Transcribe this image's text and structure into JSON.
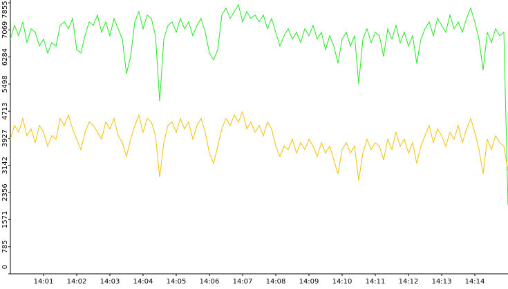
{
  "chart_data": {
    "type": "line",
    "xlim": [
      840,
      855
    ],
    "xticks": [
      {
        "value": 841,
        "label": "14:01"
      },
      {
        "value": 842,
        "label": "14:02"
      },
      {
        "value": 843,
        "label": "14:03"
      },
      {
        "value": 844,
        "label": "14:04"
      },
      {
        "value": 845,
        "label": "14:05"
      },
      {
        "value": 846,
        "label": "14:06"
      },
      {
        "value": 847,
        "label": "14:07"
      },
      {
        "value": 848,
        "label": "14:08"
      },
      {
        "value": 849,
        "label": "14:09"
      },
      {
        "value": 850,
        "label": "14:10"
      },
      {
        "value": 851,
        "label": "14:11"
      },
      {
        "value": 852,
        "label": "14:12"
      },
      {
        "value": 853,
        "label": "14:13"
      },
      {
        "value": 854,
        "label": "14:14"
      }
    ],
    "ylim": [
      0,
      7855
    ],
    "yticks": [
      0,
      785,
      1571,
      2356,
      3142,
      3927,
      4713,
      5498,
      6284,
      7069,
      7855
    ],
    "x": [
      840,
      840.125,
      840.25,
      840.375,
      840.5,
      840.625,
      840.75,
      840.875,
      841,
      841.125,
      841.25,
      841.375,
      841.5,
      841.625,
      841.75,
      841.875,
      842,
      842.125,
      842.25,
      842.375,
      842.5,
      842.625,
      842.75,
      842.875,
      843,
      843.125,
      843.25,
      843.375,
      843.5,
      843.625,
      843.75,
      843.875,
      844,
      844.125,
      844.25,
      844.375,
      844.5,
      844.625,
      844.75,
      844.875,
      845,
      845.125,
      845.25,
      845.375,
      845.5,
      845.625,
      845.75,
      845.875,
      846,
      846.125,
      846.25,
      846.375,
      846.5,
      846.625,
      846.75,
      846.875,
      847,
      847.125,
      847.25,
      847.375,
      847.5,
      847.625,
      847.75,
      847.875,
      848,
      848.125,
      848.25,
      848.375,
      848.5,
      848.625,
      848.75,
      848.875,
      849,
      849.125,
      849.25,
      849.375,
      849.5,
      849.625,
      849.75,
      849.875,
      850,
      850.125,
      850.25,
      850.375,
      850.5,
      850.625,
      850.75,
      850.875,
      851,
      851.125,
      851.25,
      851.375,
      851.5,
      851.625,
      851.75,
      851.875,
      852,
      852.125,
      852.25,
      852.375,
      852.5,
      852.625,
      852.75,
      852.875,
      853,
      853.125,
      853.25,
      853.375,
      853.5,
      853.625,
      853.75,
      853.875,
      854,
      854.125,
      854.25,
      854.375,
      854.5,
      854.625,
      854.75,
      854.875,
      855
    ],
    "series": [
      {
        "color": "#22e622",
        "values": [
          6800,
          7200,
          6900,
          7300,
          6700,
          7100,
          7000,
          6600,
          6800,
          6400,
          6700,
          6600,
          7200,
          7300,
          7100,
          7400,
          6500,
          6400,
          6900,
          7300,
          7200,
          7500,
          7000,
          7300,
          6900,
          7400,
          7100,
          6800,
          5800,
          6300,
          7300,
          7600,
          7100,
          7500,
          7400,
          6900,
          5000,
          6800,
          7200,
          7300,
          7000,
          7400,
          7100,
          7300,
          6900,
          7200,
          7400,
          7000,
          6400,
          6200,
          6500,
          7500,
          7700,
          7400,
          7600,
          7800,
          7300,
          7600,
          7400,
          7500,
          7300,
          7500,
          7100,
          7400,
          7000,
          6600,
          6900,
          7100,
          6800,
          7000,
          6700,
          7100,
          6900,
          7200,
          6800,
          7000,
          6500,
          6900,
          6600,
          6100,
          6800,
          7000,
          6600,
          6900,
          5500,
          6800,
          7100,
          6700,
          7000,
          6900,
          6300,
          7100,
          6800,
          7200,
          6700,
          7000,
          6600,
          6900,
          6100,
          6800,
          7100,
          7300,
          6900,
          7400,
          7200,
          7000,
          7500,
          7100,
          7300,
          7000,
          7400,
          7700,
          7300,
          6800,
          5900,
          7000,
          6700,
          7100,
          6900,
          7000,
          2000
        ]
      },
      {
        "color": "#f5c000",
        "values": [
          3900,
          4300,
          4100,
          4500,
          4000,
          4200,
          3800,
          4300,
          4100,
          3700,
          4000,
          3900,
          4500,
          4300,
          4600,
          4200,
          3900,
          3600,
          4100,
          4400,
          4300,
          4100,
          3900,
          4400,
          4200,
          4500,
          4000,
          3800,
          3400,
          3900,
          4300,
          4600,
          4100,
          4500,
          4400,
          4000,
          2800,
          3800,
          4300,
          4400,
          4100,
          4500,
          4200,
          4400,
          3900,
          4300,
          4500,
          4100,
          3500,
          3200,
          3700,
          4200,
          4500,
          4300,
          4600,
          4400,
          4700,
          4200,
          4400,
          4100,
          4300,
          4000,
          4400,
          4200,
          3700,
          3400,
          3700,
          3600,
          3900,
          3500,
          3800,
          3600,
          3900,
          3700,
          3400,
          3800,
          3500,
          3700,
          3300,
          2900,
          3600,
          3800,
          3500,
          3700,
          2700,
          3500,
          3900,
          3600,
          3800,
          3700,
          3300,
          3900,
          3600,
          4100,
          3700,
          3900,
          3500,
          3800,
          3200,
          3700,
          4000,
          4300,
          3800,
          4200,
          4000,
          3700,
          4100,
          3900,
          4300,
          3800,
          4200,
          4500,
          4100,
          3600,
          2900,
          3900,
          3600,
          4000,
          3800,
          3700,
          3000
        ]
      }
    ]
  }
}
